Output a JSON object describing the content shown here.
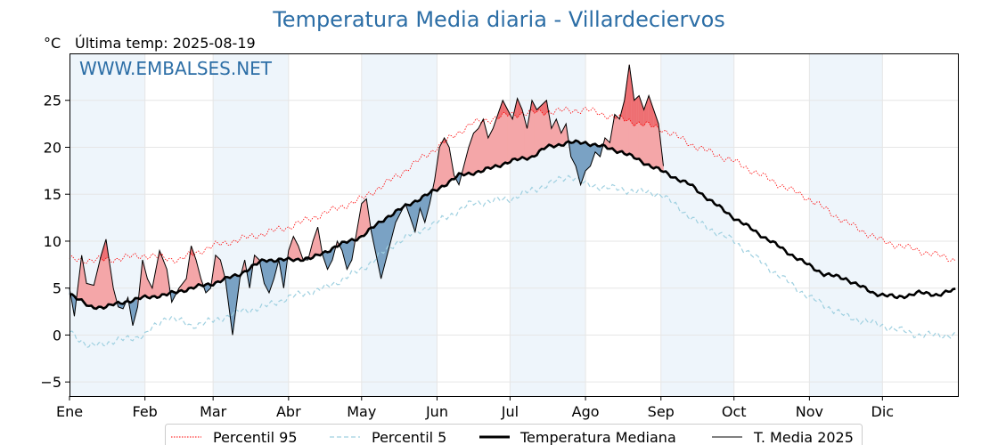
{
  "header": {
    "title": "Temperatura Media diaria - Villardeciervos",
    "unit": "°C",
    "last_temp": "Última temp: 2025-08-19"
  },
  "watermark": "WWW.EMBALSES.NET",
  "colors": {
    "title": "#2c6ea6",
    "p95": "#ff0000",
    "p5": "#9fd0e0",
    "median": "#000000",
    "series2025": "#000000",
    "above_fill": "#f4a6a8",
    "above_strong_fill": "#ee6f72",
    "below_fill": "#7aa2c4",
    "band": "#eef5fb"
  },
  "chart_data": {
    "type": "line",
    "title": "Temperatura Media diaria - Villardeciervos",
    "ylabel": "°C",
    "xlim": [
      0,
      365
    ],
    "ylim": [
      -6.5,
      30
    ],
    "yticks": [
      -5,
      0,
      5,
      10,
      15,
      20,
      25
    ],
    "month_labels": [
      "Ene",
      "Feb",
      "Mar",
      "Abr",
      "May",
      "Jun",
      "Jul",
      "Ago",
      "Sep",
      "Oct",
      "Nov",
      "Dic"
    ],
    "grid": true,
    "legend": "bottom",
    "series": [
      {
        "name": "Percentil 95",
        "style": "dotted",
        "anchors": [
          [
            0,
            8
          ],
          [
            15,
            8
          ],
          [
            31,
            8.5
          ],
          [
            45,
            8
          ],
          [
            59,
            9.5
          ],
          [
            75,
            10.5
          ],
          [
            90,
            11.5
          ],
          [
            105,
            13
          ],
          [
            120,
            14.5
          ],
          [
            135,
            17
          ],
          [
            151,
            20
          ],
          [
            165,
            22.5
          ],
          [
            181,
            23.5
          ],
          [
            196,
            23.8
          ],
          [
            212,
            24
          ],
          [
            227,
            23
          ],
          [
            243,
            22
          ],
          [
            258,
            20
          ],
          [
            273,
            18.5
          ],
          [
            288,
            16.5
          ],
          [
            304,
            14.5
          ],
          [
            319,
            12
          ],
          [
            334,
            10
          ],
          [
            349,
            9
          ],
          [
            364,
            8
          ]
        ]
      },
      {
        "name": "Percentil 5",
        "style": "dashed",
        "anchors": [
          [
            0,
            0.5
          ],
          [
            8,
            -1.3
          ],
          [
            15,
            -0.8
          ],
          [
            22,
            -0.5
          ],
          [
            31,
            0
          ],
          [
            40,
            2
          ],
          [
            50,
            1
          ],
          [
            59,
            1.5
          ],
          [
            70,
            2.5
          ],
          [
            80,
            3
          ],
          [
            90,
            4
          ],
          [
            105,
            5
          ],
          [
            120,
            7
          ],
          [
            135,
            10
          ],
          [
            151,
            12
          ],
          [
            165,
            14
          ],
          [
            181,
            14.5
          ],
          [
            196,
            16
          ],
          [
            206,
            17
          ],
          [
            212,
            16
          ],
          [
            227,
            15.5
          ],
          [
            243,
            15
          ],
          [
            258,
            12
          ],
          [
            273,
            10
          ],
          [
            288,
            7
          ],
          [
            304,
            4
          ],
          [
            319,
            2
          ],
          [
            334,
            1
          ],
          [
            349,
            0
          ],
          [
            364,
            0
          ]
        ]
      },
      {
        "name": "Temperatura Mediana",
        "style": "solid-thick",
        "anchors": [
          [
            0,
            4.5
          ],
          [
            8,
            3
          ],
          [
            15,
            3
          ],
          [
            22,
            3.5
          ],
          [
            31,
            4
          ],
          [
            40,
            4.3
          ],
          [
            50,
            5
          ],
          [
            59,
            5.5
          ],
          [
            70,
            6.5
          ],
          [
            80,
            8
          ],
          [
            90,
            8
          ],
          [
            100,
            8.2
          ],
          [
            110,
            9.5
          ],
          [
            120,
            10.5
          ],
          [
            130,
            12.5
          ],
          [
            140,
            14
          ],
          [
            151,
            15.5
          ],
          [
            160,
            17
          ],
          [
            170,
            17.5
          ],
          [
            181,
            18.5
          ],
          [
            190,
            19
          ],
          [
            196,
            20
          ],
          [
            205,
            20.5
          ],
          [
            212,
            20.5
          ],
          [
            220,
            20
          ],
          [
            227,
            19.5
          ],
          [
            235,
            18.5
          ],
          [
            243,
            17.5
          ],
          [
            255,
            16
          ],
          [
            265,
            14
          ],
          [
            273,
            12.5
          ],
          [
            288,
            10
          ],
          [
            300,
            8
          ],
          [
            310,
            6.5
          ],
          [
            319,
            6
          ],
          [
            330,
            4.5
          ],
          [
            340,
            4
          ],
          [
            349,
            4.5
          ],
          [
            357,
            4.3
          ],
          [
            364,
            4.8
          ]
        ]
      },
      {
        "name": "T. Media 2025",
        "style": "solid-thin",
        "anchors": [
          [
            0,
            5
          ],
          [
            2,
            2
          ],
          [
            5,
            8.5
          ],
          [
            7,
            5.5
          ],
          [
            10,
            5.3
          ],
          [
            13,
            8.5
          ],
          [
            15,
            10.2
          ],
          [
            18,
            5
          ],
          [
            20,
            3
          ],
          [
            22,
            2.8
          ],
          [
            24,
            4
          ],
          [
            26,
            1
          ],
          [
            28,
            3
          ],
          [
            30,
            8
          ],
          [
            32,
            6
          ],
          [
            34,
            5
          ],
          [
            37,
            9
          ],
          [
            40,
            7
          ],
          [
            42,
            3.5
          ],
          [
            45,
            5
          ],
          [
            48,
            6
          ],
          [
            50,
            9.5
          ],
          [
            52,
            8
          ],
          [
            54,
            6
          ],
          [
            56,
            4.5
          ],
          [
            58,
            5
          ],
          [
            60,
            8.5
          ],
          [
            62,
            8
          ],
          [
            64,
            6
          ],
          [
            67,
            0
          ],
          [
            70,
            6
          ],
          [
            72,
            8
          ],
          [
            74,
            5
          ],
          [
            76,
            8.5
          ],
          [
            78,
            8
          ],
          [
            80,
            5.5
          ],
          [
            82,
            4.5
          ],
          [
            84,
            6
          ],
          [
            86,
            8
          ],
          [
            88,
            5
          ],
          [
            90,
            9
          ],
          [
            92,
            10.5
          ],
          [
            94,
            9.5
          ],
          [
            96,
            8
          ],
          [
            98,
            8
          ],
          [
            100,
            10
          ],
          [
            102,
            11.5
          ],
          [
            104,
            8.5
          ],
          [
            106,
            7
          ],
          [
            108,
            8
          ],
          [
            110,
            10
          ],
          [
            112,
            9
          ],
          [
            114,
            7
          ],
          [
            116,
            8
          ],
          [
            118,
            11
          ],
          [
            120,
            14
          ],
          [
            122,
            14.5
          ],
          [
            124,
            11
          ],
          [
            126,
            8.5
          ],
          [
            128,
            6
          ],
          [
            130,
            8
          ],
          [
            132,
            10
          ],
          [
            134,
            12
          ],
          [
            136,
            13
          ],
          [
            138,
            14
          ],
          [
            140,
            12.5
          ],
          [
            142,
            11
          ],
          [
            144,
            13.5
          ],
          [
            146,
            12
          ],
          [
            148,
            14
          ],
          [
            150,
            16.5
          ],
          [
            152,
            20
          ],
          [
            154,
            21
          ],
          [
            156,
            20
          ],
          [
            158,
            17
          ],
          [
            160,
            16
          ],
          [
            162,
            18
          ],
          [
            164,
            20
          ],
          [
            166,
            21.5
          ],
          [
            168,
            22
          ],
          [
            170,
            23
          ],
          [
            172,
            21
          ],
          [
            174,
            22
          ],
          [
            176,
            23.5
          ],
          [
            178,
            25
          ],
          [
            180,
            24
          ],
          [
            182,
            23
          ],
          [
            184,
            25.2
          ],
          [
            186,
            24
          ],
          [
            188,
            22
          ],
          [
            190,
            25
          ],
          [
            192,
            24
          ],
          [
            194,
            24.5
          ],
          [
            196,
            25
          ],
          [
            198,
            22
          ],
          [
            200,
            23
          ],
          [
            202,
            21.5
          ],
          [
            204,
            22.5
          ],
          [
            206,
            19
          ],
          [
            208,
            18
          ],
          [
            210,
            16
          ],
          [
            212,
            17.5
          ],
          [
            214,
            18
          ],
          [
            216,
            19.5
          ],
          [
            218,
            19
          ],
          [
            220,
            21
          ],
          [
            222,
            20.5
          ],
          [
            224,
            23.5
          ],
          [
            226,
            23
          ],
          [
            228,
            25
          ],
          [
            230,
            28.8
          ],
          [
            232,
            25
          ],
          [
            234,
            25.5
          ],
          [
            236,
            24
          ],
          [
            238,
            25.5
          ],
          [
            240,
            24
          ],
          [
            242,
            22.5
          ],
          [
            244,
            18
          ]
        ]
      }
    ]
  },
  "legend": {
    "p95": "Percentil 95",
    "p5": "Percentil 5",
    "median": "Temperatura Mediana",
    "s2025": "T. Media 2025"
  }
}
